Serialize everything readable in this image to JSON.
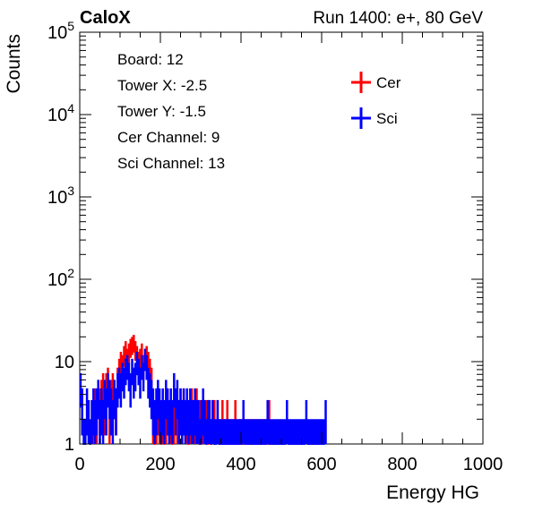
{
  "header": {
    "brand": "CaloX",
    "run_label": "Run 1400: e+, 80 GeV"
  },
  "info_box": {
    "lines": [
      "Board: 12",
      "Tower X: -2.5",
      "Tower Y: -1.5",
      "Cer Channel: 9",
      "Sci Channel: 13"
    ]
  },
  "chart_data": {
    "type": "histogram",
    "title": "",
    "xlabel": "Energy HG",
    "ylabel": "Counts",
    "xlim": [
      0,
      1000
    ],
    "ylim": [
      1,
      100000
    ],
    "yscale": "log",
    "grid": false,
    "legend_position": "top-right",
    "x_ticks": [
      "0",
      "200",
      "400",
      "600",
      "800",
      "1000"
    ],
    "y_ticks": [
      "1",
      "10",
      "10^2",
      "10^3",
      "10^4",
      "10^5"
    ],
    "bin_width": 4,
    "series": [
      {
        "name": "Cer",
        "color": "#ff0000",
        "x": [
          32,
          36,
          40,
          44,
          48,
          52,
          56,
          60,
          64,
          68,
          72,
          76,
          80,
          84,
          88,
          92,
          96,
          100,
          104,
          108,
          112,
          116,
          120,
          124,
          128,
          132,
          136,
          140,
          144,
          148,
          152,
          156,
          160,
          164,
          168,
          172,
          176,
          180,
          184,
          188,
          192,
          196,
          200,
          204,
          208,
          212,
          216,
          220,
          224,
          228,
          232,
          236,
          240,
          244,
          248,
          252,
          256,
          260,
          264,
          268,
          272,
          276,
          280,
          284,
          288,
          292,
          296,
          300,
          304,
          308,
          312,
          316,
          320,
          324,
          328,
          332,
          336,
          340,
          344,
          348,
          352,
          356,
          360,
          364,
          368,
          372,
          376,
          380,
          384,
          388,
          392,
          396,
          400,
          404,
          408,
          412,
          416,
          420,
          424,
          428,
          432,
          436,
          440,
          444,
          448,
          452,
          456,
          460,
          464,
          468
        ],
        "values": [
          2,
          3,
          2,
          4,
          3,
          4,
          5,
          3,
          5,
          6,
          2,
          4,
          5,
          4,
          3,
          6,
          8,
          10,
          9,
          12,
          14,
          11,
          13,
          15,
          16,
          17,
          14,
          12,
          10,
          11,
          13,
          9,
          11,
          12,
          10,
          8,
          6,
          2,
          1,
          2,
          3,
          2,
          1,
          2,
          1,
          2,
          3,
          2,
          2,
          1,
          2,
          3,
          2,
          2,
          3,
          2,
          3,
          2,
          2,
          1,
          2,
          3,
          2,
          2,
          3,
          2,
          2,
          1,
          2,
          2,
          2,
          1,
          2,
          1,
          2,
          2,
          1,
          2,
          1,
          1,
          2,
          1,
          1,
          2,
          1,
          1,
          1,
          1,
          2,
          1,
          1,
          1,
          1,
          1,
          1,
          1,
          1,
          1,
          1,
          1,
          1,
          1,
          1,
          1,
          1,
          1,
          1,
          1,
          1,
          2
        ]
      },
      {
        "name": "Sci",
        "color": "#0000ff",
        "x": [
          0,
          4,
          8,
          12,
          16,
          20,
          24,
          28,
          32,
          36,
          40,
          44,
          48,
          52,
          56,
          60,
          64,
          68,
          72,
          76,
          80,
          84,
          88,
          92,
          96,
          100,
          104,
          108,
          112,
          116,
          120,
          124,
          128,
          132,
          136,
          140,
          144,
          148,
          152,
          156,
          160,
          164,
          168,
          172,
          176,
          180,
          184,
          188,
          192,
          196,
          200,
          204,
          208,
          212,
          216,
          220,
          224,
          228,
          232,
          236,
          240,
          244,
          248,
          252,
          256,
          260,
          264,
          268,
          272,
          276,
          280,
          284,
          288,
          292,
          296,
          300,
          304,
          308,
          312,
          316,
          320,
          324,
          328,
          332,
          336,
          340,
          344,
          348,
          352,
          356,
          360,
          364,
          368,
          372,
          376,
          380,
          384,
          388,
          392,
          396,
          400,
          404,
          408,
          412,
          416,
          420,
          424,
          428,
          432,
          436,
          440,
          444,
          448,
          452,
          456,
          460,
          464,
          468,
          472,
          476,
          480,
          484,
          488,
          492,
          496,
          500,
          504,
          508,
          512,
          516,
          520,
          524,
          528,
          532,
          536,
          540,
          544,
          548,
          552,
          556,
          560,
          564,
          568,
          572,
          576,
          580,
          584,
          588,
          592,
          596,
          600,
          604,
          608
        ],
        "values": [
          5,
          3,
          1,
          1,
          3,
          2,
          1,
          2,
          3,
          2,
          3,
          4,
          2,
          3,
          2,
          4,
          3,
          5,
          4,
          3,
          2,
          4,
          3,
          5,
          6,
          5,
          7,
          6,
          8,
          9,
          7,
          5,
          8,
          6,
          7,
          10,
          8,
          6,
          9,
          7,
          11,
          9,
          6,
          5,
          4,
          3,
          2,
          3,
          4,
          3,
          2,
          3,
          2,
          4,
          3,
          2,
          3,
          2,
          5,
          3,
          4,
          2,
          3,
          2,
          3,
          2,
          3,
          2,
          3,
          2,
          2,
          3,
          2,
          2,
          1,
          2,
          3,
          2,
          1,
          2,
          2,
          1,
          2,
          1,
          1,
          2,
          1,
          1,
          1,
          1,
          1,
          1,
          1,
          1,
          1,
          1,
          1,
          1,
          1,
          1,
          1,
          2,
          1,
          1,
          1,
          1,
          1,
          1,
          1,
          1,
          1,
          1,
          1,
          1,
          1,
          1,
          2,
          1,
          1,
          1,
          1,
          1,
          1,
          1,
          1,
          1,
          1,
          1,
          2,
          1,
          1,
          1,
          1,
          1,
          1,
          1,
          1,
          1,
          1,
          1,
          2,
          1,
          1,
          1,
          1,
          1,
          1,
          1,
          1,
          1,
          1,
          1,
          2
        ]
      }
    ]
  }
}
